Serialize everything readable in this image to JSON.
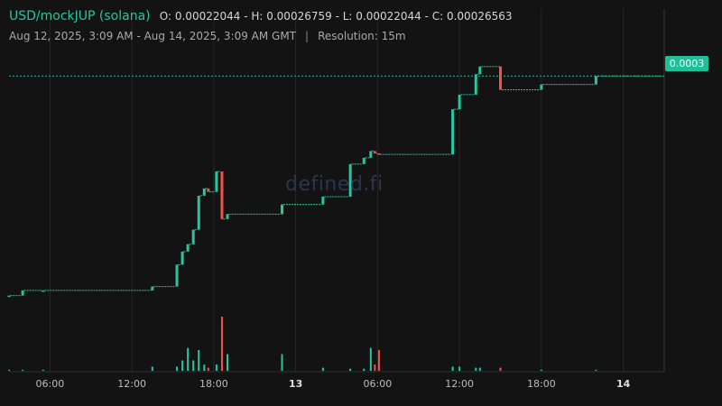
{
  "header": {
    "pair": "USD/mockJUP (solana)",
    "ohlc": "O: 0.00022044 - H: 0.00026759 - L: 0.00022044 - C: 0.00026563",
    "range": "Aug 12, 2025, 3:09 AM - Aug 14, 2025, 3:09 AM GMT",
    "separator": "|",
    "resolution": "Resolution: 15m"
  },
  "price_tag": "0.0003",
  "watermark": "defined.fi",
  "colors": {
    "up": "#26c6a3",
    "down": "#ef5350",
    "grid": "#262626",
    "background": "#131313"
  },
  "chart_data": {
    "type": "candlestick",
    "title": "USD/mockJUP (solana)",
    "resolution": "15m",
    "x_tick_labels": [
      "06:00",
      "12:00",
      "18:00",
      "13",
      "06:00",
      "12:00",
      "18:00",
      "14"
    ],
    "x_tick_hours": [
      3,
      9,
      15,
      21,
      27,
      33,
      39,
      45
    ],
    "ylim": [
      0.00022,
      0.000272
    ],
    "last_price": 0.00026563,
    "last_price_label": "0.0003",
    "grid": true,
    "candles": [
      {
        "h": 0.0,
        "o": 0.00022044,
        "c": 0.00022044,
        "v": 1
      },
      {
        "h": 1.0,
        "o": 0.00022044,
        "c": 0.0002215,
        "v": 1
      },
      {
        "h": 2.5,
        "o": 0.0002215,
        "c": 0.0002215,
        "v": 1
      },
      {
        "h": 10.5,
        "o": 0.0002215,
        "c": 0.0002223,
        "v": 4
      },
      {
        "h": 12.3,
        "o": 0.0002223,
        "c": 0.0002268,
        "v": 4
      },
      {
        "h": 12.7,
        "o": 0.0002268,
        "c": 0.0002295,
        "v": 10
      },
      {
        "h": 13.1,
        "o": 0.0002295,
        "c": 0.000231,
        "v": 22
      },
      {
        "h": 13.5,
        "o": 0.000231,
        "c": 0.000234,
        "v": 10
      },
      {
        "h": 13.9,
        "o": 0.000234,
        "c": 0.000241,
        "v": 20
      },
      {
        "h": 14.3,
        "o": 0.000241,
        "c": 0.0002425,
        "v": 6
      },
      {
        "h": 14.6,
        "o": 0.0002425,
        "c": 0.0002418,
        "v": 3
      },
      {
        "h": 15.2,
        "o": 0.0002418,
        "c": 0.000246,
        "v": 6
      },
      {
        "h": 15.6,
        "o": 0.000246,
        "c": 0.0002362,
        "v": 52
      },
      {
        "h": 16.0,
        "o": 0.0002362,
        "c": 0.0002372,
        "v": 16
      },
      {
        "h": 20.0,
        "o": 0.0002372,
        "c": 0.0002392,
        "v": 16
      },
      {
        "h": 23.0,
        "o": 0.0002392,
        "c": 0.0002408,
        "v": 3
      },
      {
        "h": 25.0,
        "o": 0.0002408,
        "c": 0.0002475,
        "v": 2
      },
      {
        "h": 26.0,
        "o": 0.0002475,
        "c": 0.0002488,
        "v": 2
      },
      {
        "h": 26.5,
        "o": 0.0002488,
        "c": 0.0002502,
        "v": 22
      },
      {
        "h": 26.8,
        "o": 0.0002502,
        "c": 0.0002497,
        "v": 6
      },
      {
        "h": 27.1,
        "o": 0.0002497,
        "c": 0.0002495,
        "v": 20
      },
      {
        "h": 32.5,
        "o": 0.0002495,
        "c": 0.0002588,
        "v": 4
      },
      {
        "h": 33.0,
        "o": 0.0002588,
        "c": 0.0002618,
        "v": 4
      },
      {
        "h": 34.2,
        "o": 0.0002618,
        "c": 0.000266,
        "v": 3
      },
      {
        "h": 34.5,
        "o": 0.000266,
        "c": 0.0002676,
        "v": 3
      },
      {
        "h": 36.0,
        "o": 0.0002676,
        "c": 0.0002628,
        "v": 3
      },
      {
        "h": 39.0,
        "o": 0.0002628,
        "c": 0.0002639,
        "v": 1
      },
      {
        "h": 43.0,
        "o": 0.0002639,
        "c": 0.00026563,
        "v": 1
      }
    ]
  }
}
